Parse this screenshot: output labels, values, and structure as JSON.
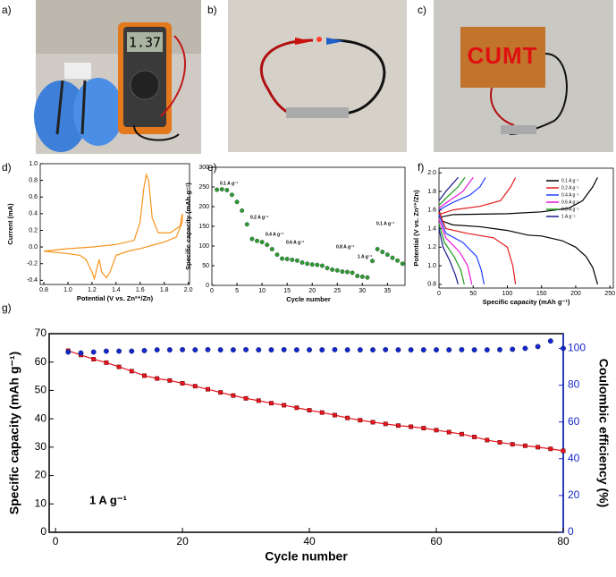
{
  "photos": [
    {
      "label": "a)",
      "display": "1.37"
    },
    {
      "label": "b)"
    },
    {
      "label": "c)",
      "led_text": "CUMT"
    }
  ],
  "chart_data": [
    {
      "type": "line",
      "label": "d)",
      "xlabel": "Potential (V vs. Zn²⁺/Zn)",
      "ylabel": "Current (mA)",
      "xlim": [
        0.77,
        2.01
      ],
      "ylim": [
        -0.45,
        1.0
      ],
      "xticks": [
        0.8,
        {
          "value": 1.0,
          "label": "1.0"
        },
        1.2,
        1.4,
        1.6,
        1.8,
        {
          "value": 2.0,
          "label": "2.0"
        }
      ],
      "yticks": [
        -0.4,
        -0.2,
        {
          "value": 0.0,
          "label": "0.0"
        },
        0.2,
        0.4,
        0.6,
        0.8,
        {
          "value": 1.0,
          "label": "1.0"
        }
      ],
      "x": [
        0.8,
        1.0,
        1.2,
        1.4,
        1.55,
        1.6,
        1.63,
        1.65,
        1.67,
        1.7,
        1.75,
        1.85,
        1.93,
        1.95,
        1.95,
        1.9,
        1.8,
        1.7,
        1.6,
        1.5,
        1.4,
        1.35,
        1.32,
        1.28,
        1.26,
        1.25,
        1.22,
        1.2,
        1.15,
        1.1,
        1.0,
        0.8
      ],
      "series": [
        {
          "color": "#f7941d",
          "values": [
            -0.05,
            -0.02,
            0.0,
            0.03,
            0.08,
            0.3,
            0.7,
            0.87,
            0.8,
            0.35,
            0.17,
            0.17,
            0.25,
            0.4,
            0.3,
            0.12,
            0.06,
            0.02,
            -0.02,
            -0.05,
            -0.1,
            -0.3,
            -0.37,
            -0.3,
            -0.15,
            -0.2,
            -0.38,
            -0.3,
            -0.15,
            -0.1,
            -0.08,
            -0.05
          ]
        }
      ]
    },
    {
      "type": "scatter",
      "label": "e)",
      "xlabel": "Cycle number",
      "ylabel": "Specific capacity (mAh g⁻¹)",
      "xlim": [
        0,
        38.5
      ],
      "ylim": [
        0,
        300
      ],
      "xticks": [
        0,
        5,
        10,
        15,
        20,
        25,
        30,
        35
      ],
      "yticks": [
        0,
        50,
        100,
        150,
        200,
        250,
        300
      ],
      "x": [
        1,
        2,
        3,
        4,
        5,
        6,
        7,
        8,
        9,
        10,
        11,
        12,
        13,
        14,
        15,
        16,
        17,
        18,
        19,
        20,
        21,
        22,
        23,
        24,
        25,
        26,
        27,
        28,
        29,
        30,
        31,
        32,
        33,
        34,
        35,
        36,
        37,
        38
      ],
      "series": [
        {
          "color": "#2f9a2f",
          "marker": "circle",
          "values": [
            243,
            244,
            242,
            230,
            212,
            190,
            155,
            118,
            113,
            110,
            103,
            92,
            78,
            68,
            67,
            65,
            63,
            58,
            55,
            53,
            52,
            50,
            44,
            40,
            38,
            35,
            34,
            32,
            24,
            22,
            20,
            62,
            92,
            85,
            78,
            70,
            63,
            55
          ]
        }
      ],
      "annotations": [
        "0.1 A g⁻¹",
        "0.2 A g⁻¹",
        "0.4 A g⁻¹",
        "0.6 A g⁻¹",
        "0.8 A g⁻¹",
        "1 A g⁻¹",
        "0.1 A g⁻¹"
      ]
    },
    {
      "type": "line",
      "label": "f)",
      "xlabel": "Specific capacity (mAh g⁻¹)",
      "ylabel": "Potential (V vs. Zn²⁺/Zn)",
      "xlim": [
        0,
        255
      ],
      "ylim": [
        0.76,
        2.05
      ],
      "legend": "upper right",
      "xticks": [
        0,
        50,
        100,
        150,
        200,
        250
      ],
      "yticks": [
        0.8,
        {
          "value": 1.0,
          "label": "1.0"
        },
        1.2,
        1.4,
        1.6,
        1.8,
        {
          "value": 2.0,
          "label": "2.0"
        }
      ],
      "series": [
        {
          "name": "0.1 A g⁻¹",
          "color": "#000000",
          "x": [
            0,
            5,
            20,
            60,
            100,
            130,
            150,
            180,
            200,
            215,
            225,
            232,
            null,
            0,
            20,
            100,
            150,
            190,
            210,
            225,
            232
          ],
          "values": [
            1.6,
            1.48,
            1.44,
            1.42,
            1.38,
            1.33,
            1.32,
            1.27,
            1.2,
            1.1,
            0.98,
            0.8,
            null,
            1.52,
            1.55,
            1.56,
            1.58,
            1.62,
            1.7,
            1.85,
            1.95
          ]
        },
        {
          "name": "0.2 A g⁻¹",
          "color": "#e41a1c",
          "x": [
            0,
            10,
            40,
            80,
            100,
            108,
            112,
            null,
            0,
            20,
            60,
            90,
            105,
            112
          ],
          "values": [
            1.58,
            1.4,
            1.35,
            1.3,
            1.2,
            1.0,
            0.8,
            null,
            1.55,
            1.6,
            1.64,
            1.7,
            1.85,
            1.95
          ]
        },
        {
          "name": "0.4 A g⁻¹",
          "color": "#1f3fff",
          "x": [
            0,
            10,
            35,
            55,
            62,
            66,
            null,
            0,
            20,
            45,
            60,
            68
          ],
          "values": [
            1.55,
            1.35,
            1.25,
            1.1,
            0.95,
            0.8,
            null,
            1.6,
            1.68,
            1.76,
            1.85,
            1.95
          ]
        },
        {
          "name": "0.6 A g⁻¹",
          "color": "#e619d8",
          "x": [
            0,
            10,
            30,
            42,
            48,
            null,
            0,
            15,
            35,
            50
          ],
          "values": [
            1.5,
            1.3,
            1.15,
            1.0,
            0.8,
            null,
            1.62,
            1.7,
            1.8,
            1.95
          ]
        },
        {
          "name": "0.8 A g⁻¹",
          "color": "#1a9a1a",
          "x": [
            0,
            8,
            22,
            32,
            37,
            null,
            0,
            12,
            28,
            38
          ],
          "values": [
            1.45,
            1.25,
            1.1,
            0.95,
            0.8,
            null,
            1.65,
            1.74,
            1.85,
            1.95
          ]
        },
        {
          "name": "1 A g⁻¹",
          "color": "#1a1a8c",
          "x": [
            0,
            6,
            16,
            24,
            28,
            null,
            0,
            10,
            22,
            28
          ],
          "values": [
            1.4,
            1.2,
            1.05,
            0.9,
            0.8,
            null,
            1.7,
            1.8,
            1.9,
            1.95
          ]
        }
      ]
    },
    {
      "type": "scatter",
      "label": "g)",
      "xlabel": "Cycle number",
      "ylabel": "Specific capacity (mAh g⁻¹)",
      "y2label": "Coulombic efficiency (%)",
      "xlim": [
        -1,
        80
      ],
      "ylim": [
        0,
        70
      ],
      "y2lim": [
        0,
        108
      ],
      "xticks": [
        0,
        20,
        40,
        60,
        80
      ],
      "yticks": [
        0,
        10,
        20,
        30,
        40,
        50,
        60,
        70
      ],
      "y2ticks": [
        0,
        20,
        40,
        60,
        80,
        100
      ],
      "x": [
        2,
        4,
        6,
        8,
        10,
        12,
        14,
        16,
        18,
        20,
        22,
        24,
        26,
        28,
        30,
        32,
        34,
        36,
        38,
        40,
        42,
        44,
        46,
        48,
        50,
        52,
        54,
        56,
        58,
        60,
        62,
        64,
        66,
        68,
        70,
        72,
        74,
        76,
        78,
        80
      ],
      "series": [
        {
          "color": "#e8141e",
          "marker": "square",
          "line": true,
          "values": [
            64,
            62.5,
            61,
            59.8,
            58.3,
            56.8,
            55.2,
            54.2,
            53.5,
            52.5,
            51.5,
            50.4,
            49.3,
            48.2,
            47.2,
            46.4,
            45.5,
            44.8,
            43.9,
            43,
            42.2,
            41.3,
            40.3,
            39.5,
            38.8,
            38.2,
            37.6,
            37.2,
            36.7,
            36,
            35.3,
            34.6,
            33.6,
            32.5,
            31.7,
            31,
            30.5,
            30,
            29.4,
            28.7
          ]
        },
        {
          "color": "#1426c8",
          "marker": "circle",
          "axis": "y2",
          "values": [
            98,
            97.5,
            98,
            98.5,
            98.5,
            98.5,
            98.8,
            99.2,
            99.2,
            99.3,
            99.2,
            99.3,
            99.2,
            99.2,
            99.3,
            99.2,
            99.2,
            99.3,
            99.2,
            99.2,
            99.2,
            99.3,
            99.2,
            99.2,
            99.2,
            99.3,
            99.2,
            99.2,
            99.2,
            99.2,
            99.2,
            99.3,
            99.2,
            99.2,
            99.3,
            99.5,
            100,
            101,
            104,
            100
          ]
        }
      ],
      "annotations": [
        "1 A g⁻¹"
      ]
    }
  ]
}
